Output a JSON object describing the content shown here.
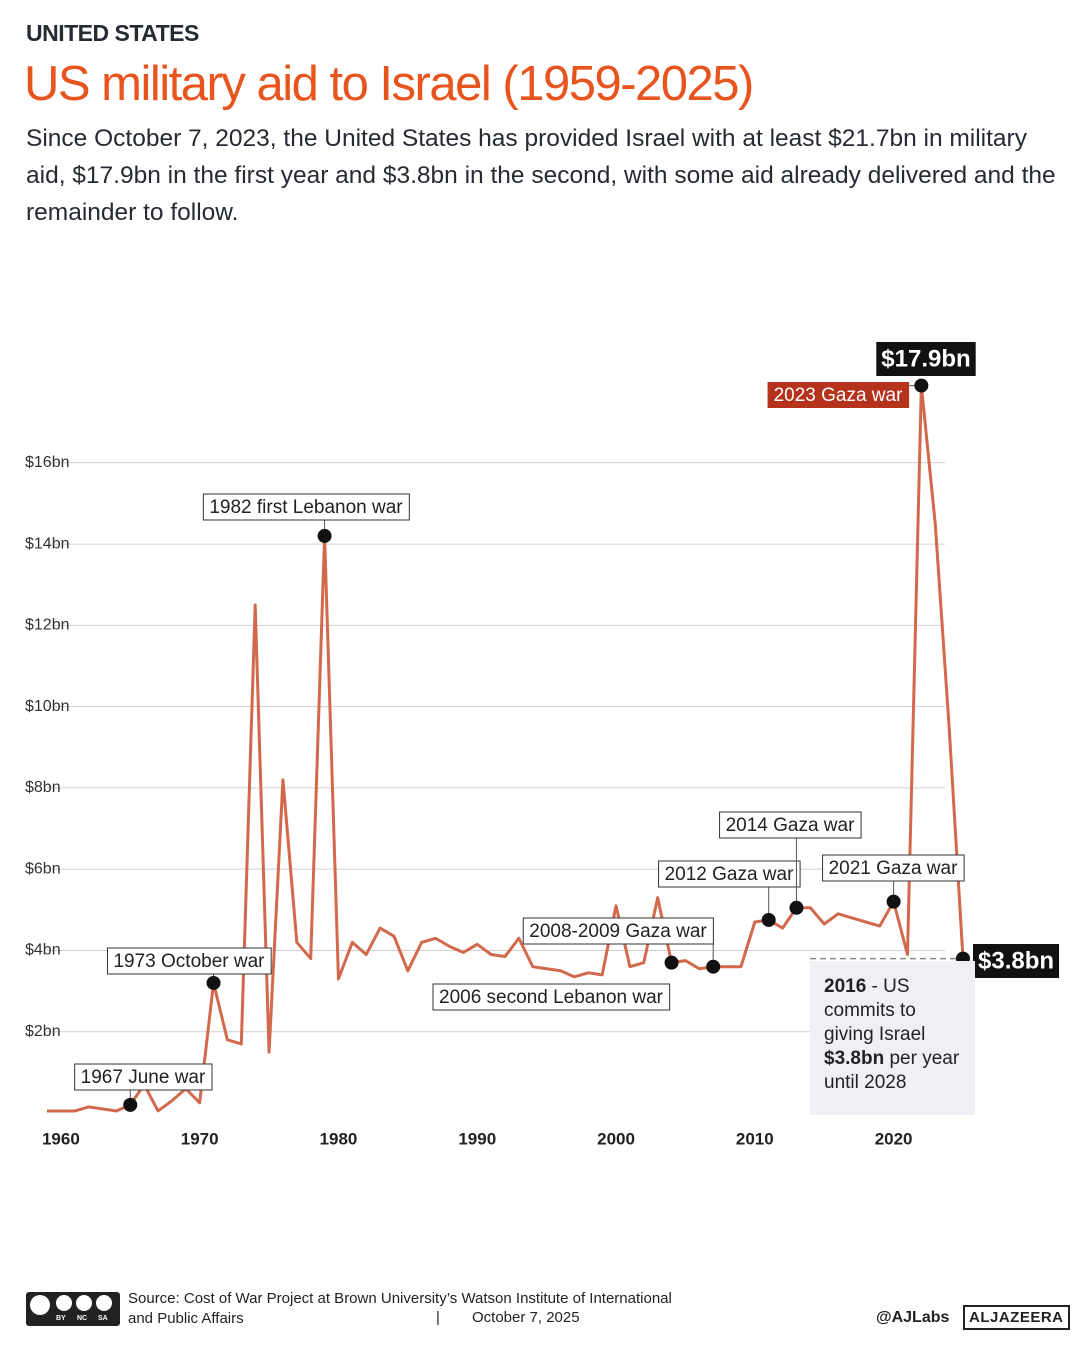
{
  "header": {
    "kicker": "UNITED STATES",
    "title": "US military aid to Israel (1959-2025)",
    "subtitle": "Since October 7, 2023, the United States has provided Israel with at least $21.7bn in military aid, $17.9bn in the first year and $3.8bn in the second, with some aid already delivered and the remainder to follow."
  },
  "chart_data": {
    "type": "line",
    "x": [
      1959,
      1960,
      1961,
      1962,
      1963,
      1964,
      1965,
      1966,
      1967,
      1968,
      1969,
      1970,
      1971,
      1972,
      1973,
      1974,
      1975,
      1976,
      1977,
      1978,
      1979,
      1980,
      1981,
      1982,
      1983,
      1984,
      1985,
      1986,
      1987,
      1988,
      1989,
      1990,
      1991,
      1992,
      1993,
      1994,
      1995,
      1996,
      1997,
      1998,
      1999,
      2000,
      2001,
      2002,
      2003,
      2004,
      2005,
      2006,
      2007,
      2008,
      2009,
      2010,
      2011,
      2012,
      2013,
      2014,
      2015,
      2016,
      2017,
      2018,
      2019,
      2020,
      2021,
      2022,
      2023,
      2024,
      2025
    ],
    "series": [
      {
        "name": "US military aid",
        "color": "#d2694d",
        "values": [
          0.05,
          0.05,
          0.05,
          0.15,
          0.1,
          0.05,
          0.2,
          0.7,
          0.05,
          0.3,
          0.6,
          0.25,
          3.2,
          1.8,
          1.7,
          12.5,
          1.5,
          8.2,
          4.2,
          3.8,
          14.2,
          3.3,
          4.2,
          3.9,
          4.55,
          4.35,
          3.5,
          4.2,
          4.3,
          4.1,
          3.95,
          4.15,
          3.9,
          3.85,
          4.3,
          3.6,
          3.55,
          3.5,
          3.35,
          3.45,
          3.4,
          5.1,
          3.6,
          3.7,
          5.3,
          3.7,
          3.75,
          3.55,
          3.6,
          3.6,
          3.6,
          4.7,
          4.75,
          4.55,
          5.05,
          5.05,
          4.65,
          4.9,
          4.8,
          4.7,
          4.6,
          5.2,
          3.9,
          17.9,
          14.5,
          9.5,
          3.8
        ]
      }
    ],
    "xlim": [
      1959,
      2025
    ],
    "ylim": [
      0,
      18.8
    ],
    "xticks": [
      1960,
      1970,
      1980,
      1990,
      2000,
      2010,
      2020
    ],
    "yticks": [
      {
        "value": 2,
        "label": "$2bn"
      },
      {
        "value": 4,
        "label": "$4bn"
      },
      {
        "value": 6,
        "label": "$6bn"
      },
      {
        "value": 8,
        "label": "$8bn"
      },
      {
        "value": 10,
        "label": "$10bn"
      },
      {
        "value": 12,
        "label": "$12bn"
      },
      {
        "value": 14,
        "label": "$14bn"
      },
      {
        "value": 16,
        "label": "$16bn"
      }
    ],
    "grid": true,
    "annotations": [
      {
        "text": "1967 June war",
        "x": 1965
      },
      {
        "text": "1973 October war",
        "x": 1971
      },
      {
        "text": "1982 first Lebanon war",
        "x": 1979
      },
      {
        "text": "2006 second Lebanon war",
        "x": 2004
      },
      {
        "text": "2008-2009 Gaza war",
        "x": 2007
      },
      {
        "text": "2012 Gaza war",
        "x": 2011
      },
      {
        "text": "2014 Gaza war",
        "x": 2013
      },
      {
        "text": "2021 Gaza war",
        "x": 2020
      },
      {
        "text": "2023 Gaza war",
        "x": 2022,
        "box_color": "#b5321d"
      }
    ],
    "callouts": [
      {
        "x": 2022,
        "label": "$17.9bn"
      },
      {
        "x": 2025,
        "label": "$3.8bn"
      }
    ],
    "note": [
      "2016",
      " - US commits to giving Israel ",
      "$3.8bn",
      " per year until 2028"
    ]
  },
  "footer": {
    "cc": [
      "BY",
      "NC",
      "SA"
    ],
    "source": "Source:  Cost of War Project at Brown University’s Watson Institute of International and Public Affairs",
    "separator": "|",
    "date": "October 7, 2025",
    "handle": "@AJLabs",
    "brand": "ALJAZEERA"
  }
}
